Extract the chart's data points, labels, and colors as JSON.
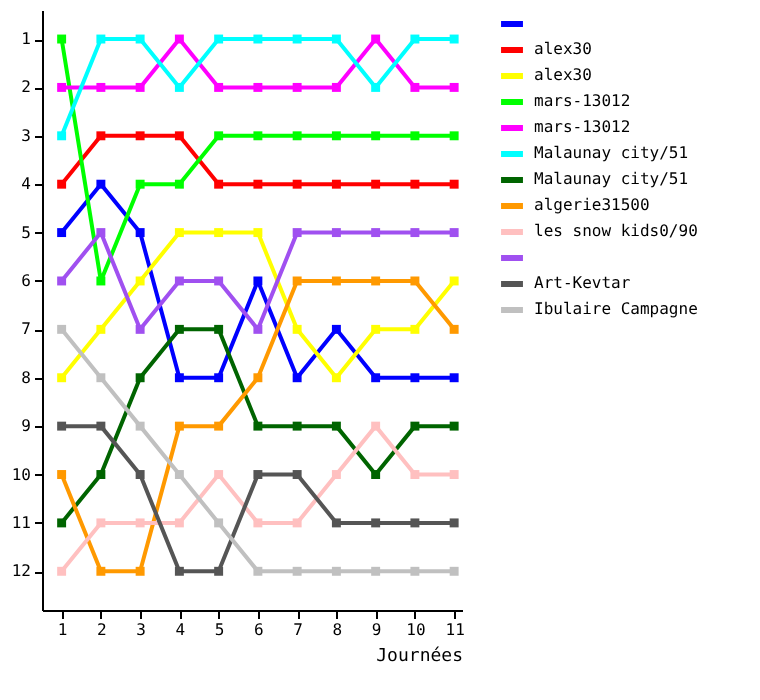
{
  "chart_data": {
    "type": "line",
    "xlabel": "Journées",
    "x": [
      1,
      2,
      3,
      4,
      5,
      6,
      7,
      8,
      9,
      10,
      11
    ],
    "xlim": [
      0.5,
      11.2
    ],
    "xticks": [
      1,
      2,
      3,
      4,
      5,
      6,
      7,
      8,
      9,
      10,
      11
    ],
    "ylim": [
      12.8,
      0.4
    ],
    "yticks": [
      1,
      2,
      3,
      4,
      5,
      6,
      7,
      8,
      9,
      10,
      11,
      12
    ],
    "grid": false,
    "legend": "right",
    "marker": "square",
    "line_style": "solid",
    "series": [
      {
        "color": "#0000ff",
        "values": [
          5,
          4,
          5,
          8,
          8,
          6,
          8,
          7,
          8,
          8,
          8
        ]
      },
      {
        "name": "alex30",
        "color": "#ff0000",
        "values": [
          4,
          3,
          3,
          3,
          4,
          4,
          4,
          4,
          4,
          4,
          4
        ]
      },
      {
        "name": "alex30",
        "color": "#ffff00",
        "values": [
          8,
          7,
          6,
          5,
          5,
          5,
          7,
          8,
          7,
          7,
          6
        ]
      },
      {
        "name": "mars-13012",
        "color": "#00ff00",
        "values": [
          1,
          6,
          4,
          4,
          3,
          3,
          3,
          3,
          3,
          3,
          3
        ]
      },
      {
        "name": "mars-13012",
        "color": "#ff00ff",
        "values": [
          2,
          2,
          2,
          1,
          2,
          2,
          2,
          2,
          1,
          2,
          2
        ]
      },
      {
        "name": "Malaunay city/51",
        "color": "#00ffff",
        "values": [
          3,
          1,
          1,
          2,
          1,
          1,
          1,
          1,
          2,
          1,
          1
        ]
      },
      {
        "name": "Malaunay city/51",
        "color": "#006400",
        "values": [
          11,
          10,
          8,
          7,
          7,
          9,
          9,
          9,
          10,
          9,
          9
        ]
      },
      {
        "name": "algerie31500",
        "color": "#ff9900",
        "values": [
          10,
          12,
          12,
          9,
          9,
          8,
          6,
          6,
          6,
          6,
          7
        ]
      },
      {
        "name": "les snow kids0/90",
        "color": "#ffc0c0",
        "values": [
          12,
          11,
          11,
          11,
          10,
          11,
          11,
          10,
          9,
          10,
          10
        ]
      },
      {
        "color": "#a050f0",
        "values": [
          6,
          5,
          7,
          6,
          6,
          7,
          5,
          5,
          5,
          5,
          5
        ]
      },
      {
        "name": "Art-Kevtar",
        "color": "#555555",
        "values": [
          9,
          9,
          10,
          12,
          12,
          10,
          10,
          11,
          11,
          11,
          11
        ]
      },
      {
        "name": "Ibulaire Campagne",
        "color": "#c0c0c0",
        "values": [
          7,
          8,
          9,
          10,
          11,
          12,
          12,
          12,
          12,
          12,
          12
        ]
      }
    ]
  }
}
